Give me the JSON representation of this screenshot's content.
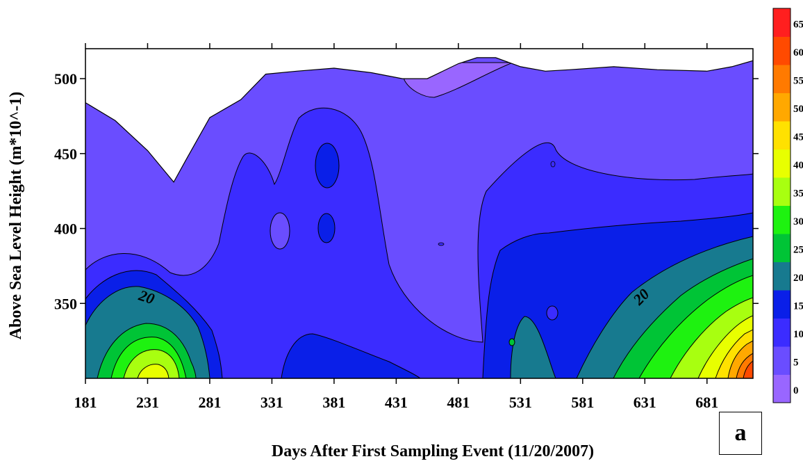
{
  "chart_data": {
    "type": "heatmap",
    "subtype": "filled-contour",
    "title": "",
    "xlabel": "Days After First Sampling Event (11/20/2007)",
    "ylabel": "Above Sea Level Height (m*10^-1)",
    "xlim": [
      181,
      718
    ],
    "ylim": [
      300,
      520
    ],
    "x_ticks": [
      181,
      231,
      281,
      331,
      381,
      431,
      481,
      531,
      581,
      631,
      681
    ],
    "y_ticks": [
      350,
      400,
      450,
      500
    ],
    "grid": false,
    "legend": "colorbar-right",
    "colorbar": {
      "levels": [
        0,
        5,
        10,
        15,
        20,
        25,
        30,
        35,
        40,
        45,
        50,
        55,
        60,
        65
      ],
      "colors": [
        "#9966ff",
        "#6a4dff",
        "#3b2cff",
        "#0a1fe8",
        "#177a8f",
        "#00c436",
        "#1ef210",
        "#a8ff10",
        "#e8ff00",
        "#ffe100",
        "#ffa800",
        "#ff7a00",
        "#ff4a00",
        "#ff1f1f"
      ]
    },
    "contour_labels": [
      {
        "text": "20",
        "x": 229,
        "y": 351
      },
      {
        "text": "20",
        "x": 631,
        "y": 352
      }
    ],
    "surface_top": [
      [
        181,
        484
      ],
      [
        205,
        472
      ],
      [
        231,
        452
      ],
      [
        252,
        431
      ],
      [
        262,
        446
      ],
      [
        281,
        474
      ],
      [
        306,
        486
      ],
      [
        326,
        503
      ],
      [
        351,
        505
      ],
      [
        381,
        507
      ],
      [
        411,
        504
      ],
      [
        436,
        500
      ],
      [
        456,
        500
      ],
      [
        481,
        510
      ],
      [
        496,
        514
      ],
      [
        511,
        514
      ],
      [
        531,
        508
      ],
      [
        551,
        505
      ],
      [
        571,
        506
      ],
      [
        606,
        508
      ],
      [
        641,
        506
      ],
      [
        681,
        505
      ],
      [
        701,
        508
      ],
      [
        718,
        512
      ]
    ],
    "panel_label": "a"
  }
}
